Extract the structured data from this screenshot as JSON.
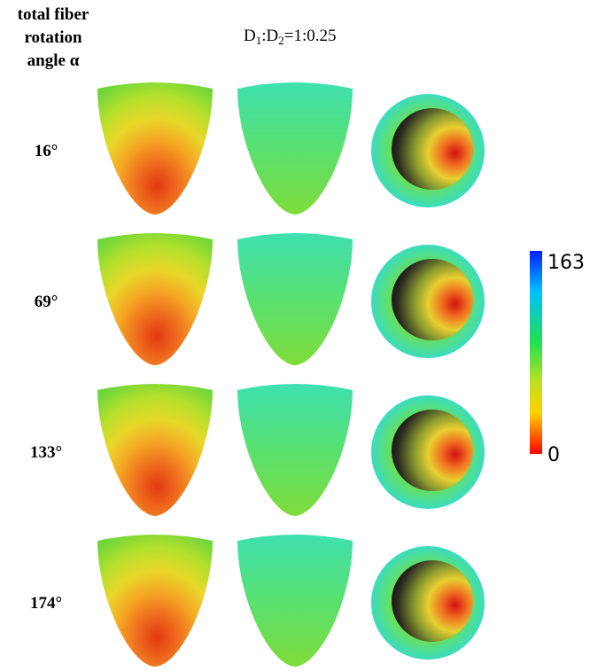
{
  "header": {
    "row_axis_label": [
      "total fiber",
      "rotation",
      "angle α"
    ],
    "title": [
      "D",
      "1",
      ":D",
      "2",
      "=1:0.25"
    ]
  },
  "rows": [
    "16°",
    "69°",
    "133°",
    "174°"
  ],
  "colorbar": {
    "max": "163",
    "min": "0"
  }
}
